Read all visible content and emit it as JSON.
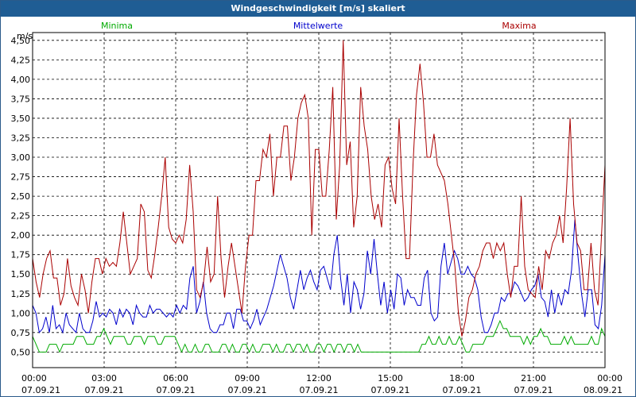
{
  "chart_data": {
    "type": "line",
    "title": "Windgeschwindigkeit [m/s] skaliert",
    "ylabel": "m/s",
    "ylim": [
      0.3,
      4.6
    ],
    "y_ticks": [
      "0,50",
      "0,75",
      "1,00",
      "1,25",
      "1,50",
      "1,75",
      "2,00",
      "2,25",
      "2,50",
      "2,75",
      "3,00",
      "3,25",
      "3,50",
      "3,75",
      "4,00",
      "4,25",
      "4,50"
    ],
    "y_tick_values": [
      0.5,
      0.75,
      1.0,
      1.25,
      1.5,
      1.75,
      2.0,
      2.25,
      2.5,
      2.75,
      3.0,
      3.25,
      3.5,
      3.75,
      4.0,
      4.25,
      4.5
    ],
    "x_ticks": [
      {
        "time": "00:00",
        "date": "07.09.21"
      },
      {
        "time": "03:00",
        "date": "07.09.21"
      },
      {
        "time": "06:00",
        "date": "07.09.21"
      },
      {
        "time": "09:00",
        "date": "07.09.21"
      },
      {
        "time": "12:00",
        "date": "07.09.21"
      },
      {
        "time": "15:00",
        "date": "07.09.21"
      },
      {
        "time": "18:00",
        "date": "07.09.21"
      },
      {
        "time": "21:00",
        "date": "07.09.21"
      },
      {
        "time": "00:00",
        "date": "08.09.21"
      }
    ],
    "grid": true,
    "legend_position": "top",
    "series": [
      {
        "name": "Minima",
        "color": "#00aa00",
        "values": [
          0.7,
          0.6,
          0.5,
          0.5,
          0.5,
          0.6,
          0.6,
          0.6,
          0.5,
          0.6,
          0.6,
          0.6,
          0.6,
          0.7,
          0.7,
          0.7,
          0.6,
          0.6,
          0.6,
          0.7,
          0.7,
          0.8,
          0.7,
          0.6,
          0.7,
          0.7,
          0.7,
          0.7,
          0.6,
          0.6,
          0.7,
          0.7,
          0.7,
          0.6,
          0.7,
          0.7,
          0.7,
          0.6,
          0.6,
          0.7,
          0.7,
          0.7,
          0.7,
          0.6,
          0.5,
          0.6,
          0.5,
          0.5,
          0.6,
          0.5,
          0.5,
          0.6,
          0.6,
          0.5,
          0.5,
          0.5,
          0.6,
          0.6,
          0.5,
          0.6,
          0.5,
          0.5,
          0.6,
          0.6,
          0.5,
          0.6,
          0.5,
          0.5,
          0.6,
          0.6,
          0.6,
          0.5,
          0.6,
          0.5,
          0.5,
          0.6,
          0.6,
          0.5,
          0.6,
          0.6,
          0.5,
          0.6,
          0.5,
          0.5,
          0.6,
          0.6,
          0.5,
          0.6,
          0.6,
          0.5,
          0.6,
          0.6,
          0.5,
          0.6,
          0.6,
          0.5,
          0.6,
          0.5,
          0.5,
          0.5,
          0.5,
          0.5,
          0.5,
          0.5,
          0.5,
          0.5,
          0.5,
          0.5,
          0.5,
          0.5,
          0.5,
          0.5,
          0.5,
          0.5,
          0.5,
          0.6,
          0.6,
          0.7,
          0.6,
          0.6,
          0.7,
          0.6,
          0.6,
          0.7,
          0.6,
          0.6,
          0.7,
          0.6,
          0.5,
          0.5,
          0.6,
          0.6,
          0.6,
          0.6,
          0.7,
          0.7,
          0.7,
          0.8,
          0.9,
          0.8,
          0.8,
          0.7,
          0.7,
          0.7,
          0.7,
          0.6,
          0.7,
          0.6,
          0.7,
          0.7,
          0.8,
          0.7,
          0.7,
          0.6,
          0.6,
          0.6,
          0.6,
          0.7,
          0.6,
          0.7,
          0.6,
          0.6,
          0.6,
          0.6,
          0.6,
          0.7,
          0.6,
          0.6,
          0.8,
          0.7
        ]
      },
      {
        "name": "Mittelwerte",
        "color": "#0000cc",
        "values": [
          1.1,
          1.0,
          0.75,
          0.8,
          0.95,
          0.75,
          1.1,
          0.8,
          0.85,
          0.75,
          1.0,
          0.85,
          0.8,
          0.75,
          1.0,
          0.8,
          0.75,
          0.75,
          0.9,
          1.15,
          0.95,
          1.0,
          0.95,
          1.05,
          1.0,
          0.85,
          1.05,
          0.95,
          1.05,
          1.0,
          0.85,
          1.1,
          1.0,
          0.95,
          0.95,
          1.1,
          1.0,
          1.05,
          1.05,
          1.0,
          0.95,
          1.0,
          0.95,
          1.1,
          1.0,
          1.1,
          1.05,
          1.45,
          1.6,
          1.0,
          1.15,
          1.4,
          1.0,
          0.8,
          0.75,
          0.75,
          0.85,
          0.85,
          1.0,
          1.0,
          0.8,
          1.05,
          1.05,
          0.9,
          0.9,
          0.8,
          0.9,
          1.05,
          0.85,
          0.95,
          1.05,
          1.2,
          1.35,
          1.55,
          1.75,
          1.6,
          1.45,
          1.2,
          1.05,
          1.3,
          1.55,
          1.3,
          1.45,
          1.55,
          1.4,
          1.3,
          1.55,
          1.6,
          1.45,
          1.3,
          1.75,
          2.0,
          1.45,
          1.1,
          1.5,
          1.0,
          1.4,
          1.3,
          1.05,
          1.25,
          1.8,
          1.5,
          1.95,
          1.5,
          1.1,
          1.4,
          1.0,
          1.3,
          1.05,
          1.5,
          1.45,
          1.1,
          1.3,
          1.2,
          1.2,
          1.1,
          1.1,
          1.45,
          1.55,
          1.0,
          0.9,
          0.95,
          1.6,
          1.9,
          1.5,
          1.65,
          1.8,
          1.7,
          1.5,
          1.5,
          1.6,
          1.5,
          1.45,
          1.3,
          0.95,
          0.75,
          0.75,
          0.85,
          1.0,
          1.0,
          1.2,
          1.15,
          1.25,
          1.25,
          1.4,
          1.35,
          1.25,
          1.15,
          1.2,
          1.3,
          1.35,
          1.5,
          1.2,
          1.15,
          0.95,
          1.3,
          1.0,
          1.25,
          1.1,
          1.3,
          1.25,
          1.55,
          2.2,
          1.7,
          1.25,
          0.95,
          1.3,
          1.3,
          0.85,
          0.8,
          1.1,
          1.75
        ]
      },
      {
        "name": "Maxima",
        "color": "#aa0000",
        "values": [
          1.7,
          1.4,
          1.2,
          1.5,
          1.7,
          1.8,
          1.45,
          1.45,
          1.1,
          1.25,
          1.7,
          1.35,
          1.2,
          1.1,
          1.5,
          1.3,
          1.0,
          1.4,
          1.7,
          1.7,
          1.5,
          1.7,
          1.6,
          1.65,
          1.6,
          1.9,
          2.3,
          1.9,
          1.5,
          1.6,
          1.7,
          2.4,
          2.3,
          1.55,
          1.45,
          1.75,
          2.1,
          2.5,
          3.0,
          2.1,
          1.95,
          1.9,
          2.0,
          1.9,
          2.2,
          2.9,
          2.3,
          1.3,
          1.2,
          1.4,
          1.85,
          1.4,
          1.5,
          2.5,
          1.7,
          1.2,
          1.6,
          1.9,
          1.6,
          1.3,
          1.0,
          1.6,
          2.0,
          2.0,
          2.7,
          2.7,
          3.1,
          3.0,
          3.3,
          2.5,
          3.0,
          3.0,
          3.4,
          3.4,
          2.7,
          3.0,
          3.5,
          3.7,
          3.8,
          3.5,
          2.0,
          3.1,
          3.1,
          2.5,
          2.5,
          3.1,
          3.9,
          2.2,
          2.9,
          4.5,
          2.9,
          3.2,
          2.1,
          2.5,
          3.9,
          3.4,
          3.1,
          2.5,
          2.2,
          2.4,
          2.1,
          2.9,
          3.0,
          2.6,
          2.4,
          3.5,
          2.5,
          1.7,
          1.7,
          2.9,
          3.8,
          4.2,
          3.7,
          3.0,
          3.0,
          3.3,
          2.9,
          2.8,
          2.7,
          2.4,
          2.0,
          1.6,
          1.0,
          0.7,
          0.9,
          1.2,
          1.3,
          1.5,
          1.6,
          1.8,
          1.9,
          1.9,
          1.7,
          1.9,
          1.8,
          1.9,
          1.5,
          1.2,
          1.6,
          1.6,
          2.5,
          1.6,
          1.3,
          1.25,
          1.2,
          1.6,
          1.3,
          1.8,
          1.7,
          1.9,
          2.0,
          2.25,
          1.9,
          2.6,
          3.5,
          2.4,
          1.9,
          1.8,
          1.3,
          1.3,
          1.9,
          1.3,
          1.1,
          2.0,
          2.9
        ]
      }
    ]
  }
}
